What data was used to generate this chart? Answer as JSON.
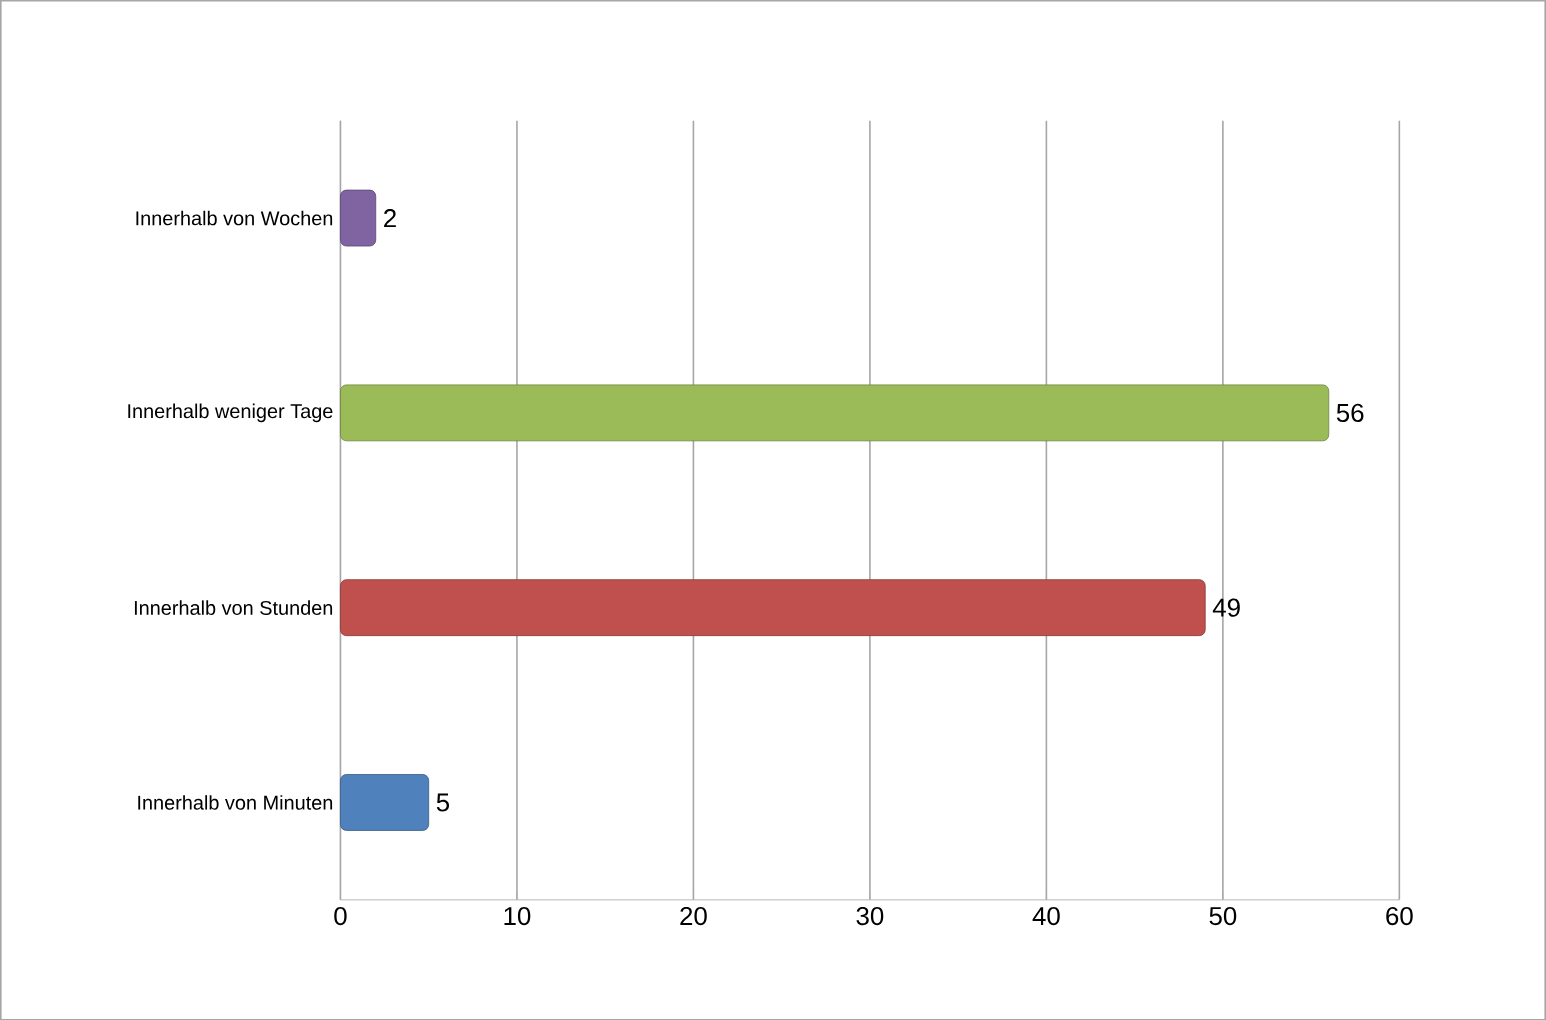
{
  "chart_data": {
    "type": "bar",
    "orientation": "horizontal",
    "categories": [
      "Innerhalb von Wochen",
      "Innerhalb weniger Tage",
      "Innerhalb von Stunden",
      "Innerhalb von Minuten"
    ],
    "values": [
      2,
      56,
      49,
      5
    ],
    "colors": [
      "#8064a2",
      "#9bbb59",
      "#c0504d",
      "#4f81bd"
    ],
    "xlim": [
      0,
      60
    ],
    "xticks": [
      0,
      10,
      20,
      30,
      40,
      50,
      60
    ],
    "grid": "x",
    "data_labels": true
  }
}
